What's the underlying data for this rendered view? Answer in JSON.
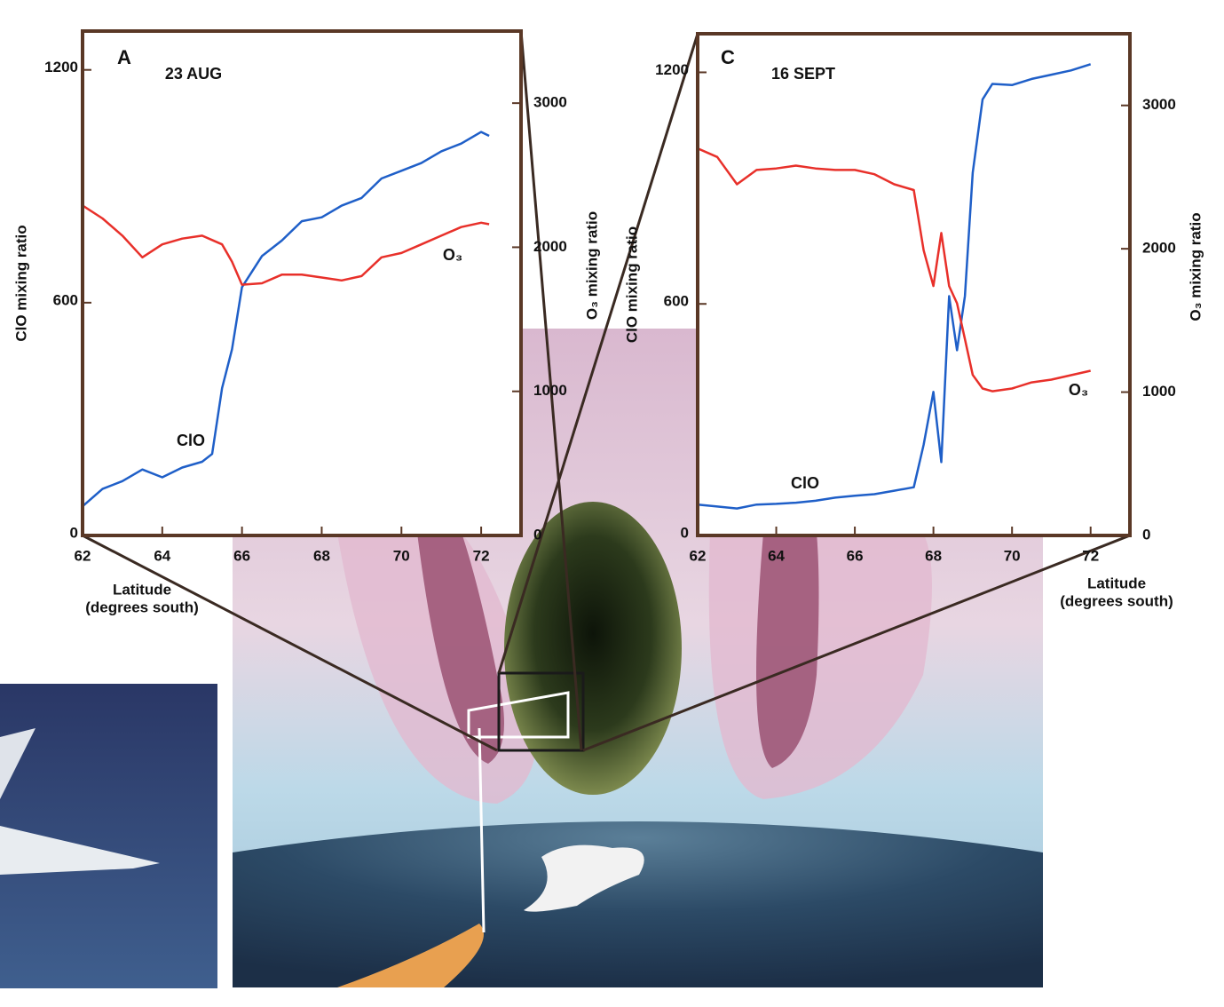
{
  "chart_data": [
    {
      "type": "line",
      "panel": "A",
      "title": "23 AUG",
      "xlabel": [
        "Latitude",
        "(degrees south)"
      ],
      "ylabel": "ClO mixing ratio",
      "y2label": "O₃ mixing ratio",
      "x": [
        62,
        62.5,
        63,
        63.5,
        64,
        64.5,
        65,
        65.25,
        65.5,
        65.75,
        66,
        66.5,
        67,
        67.5,
        68,
        68.5,
        69,
        69.5,
        70,
        70.5,
        71,
        71.5,
        72,
        72.2
      ],
      "xlim": [
        62,
        73
      ],
      "xticks": [
        62,
        64,
        66,
        68,
        70,
        72
      ],
      "ylim": [
        0,
        1300
      ],
      "yticks": [
        0,
        600,
        1200
      ],
      "y2lim": [
        0,
        3500
      ],
      "y2ticks": [
        0,
        1000,
        2000,
        3000
      ],
      "series": [
        {
          "name": "ClO",
          "color": "#1f5fc8",
          "values": [
            75,
            120,
            140,
            170,
            150,
            175,
            190,
            210,
            380,
            480,
            640,
            720,
            760,
            810,
            820,
            850,
            870,
            920,
            940,
            960,
            990,
            1010,
            1040,
            1030
          ]
        },
        {
          "name": "O₃",
          "color": "#e8302a",
          "axis": "y2",
          "values": [
            2290,
            2200,
            2080,
            1930,
            2020,
            2060,
            2080,
            2050,
            2020,
            1900,
            1740,
            1750,
            1810,
            1810,
            1790,
            1770,
            1800,
            1930,
            1960,
            2020,
            2080,
            2140,
            2170,
            2160
          ]
        }
      ]
    },
    {
      "type": "line",
      "panel": "C",
      "title": "16 SEPT",
      "xlabel": [
        "Latitude",
        "(degrees south)"
      ],
      "ylabel": "ClO mixing ratio",
      "y2label": "O₃ mixing ratio",
      "x": [
        62,
        62.5,
        63,
        63.5,
        64,
        64.5,
        65,
        65.5,
        66,
        66.5,
        67,
        67.5,
        67.75,
        68,
        68.2,
        68.4,
        68.6,
        68.8,
        69,
        69.25,
        69.5,
        70,
        70.5,
        71,
        71.5,
        72
      ],
      "xlim": [
        62,
        73
      ],
      "xticks": [
        62,
        64,
        66,
        68,
        70,
        72
      ],
      "ylim": [
        0,
        1300
      ],
      "yticks": [
        0,
        600,
        1200
      ],
      "y2lim": [
        0,
        3500
      ],
      "y2ticks": [
        0,
        1000,
        2000,
        3000
      ],
      "series": [
        {
          "name": "ClO",
          "color": "#1f5fc8",
          "values": [
            80,
            75,
            70,
            80,
            82,
            85,
            90,
            98,
            103,
            107,
            116,
            125,
            235,
            372,
            190,
            620,
            480,
            620,
            940,
            1130,
            1170,
            1167,
            1183,
            1194,
            1205,
            1221
          ]
        },
        {
          "name": "O₃",
          "color": "#e8302a",
          "axis": "y2",
          "values": [
            2700,
            2640,
            2450,
            2550,
            2560,
            2580,
            2560,
            2550,
            2550,
            2520,
            2450,
            2410,
            1990,
            1740,
            2110,
            1740,
            1620,
            1370,
            1120,
            1025,
            1006,
            1025,
            1068,
            1087,
            1118,
            1149
          ]
        }
      ]
    }
  ]
}
